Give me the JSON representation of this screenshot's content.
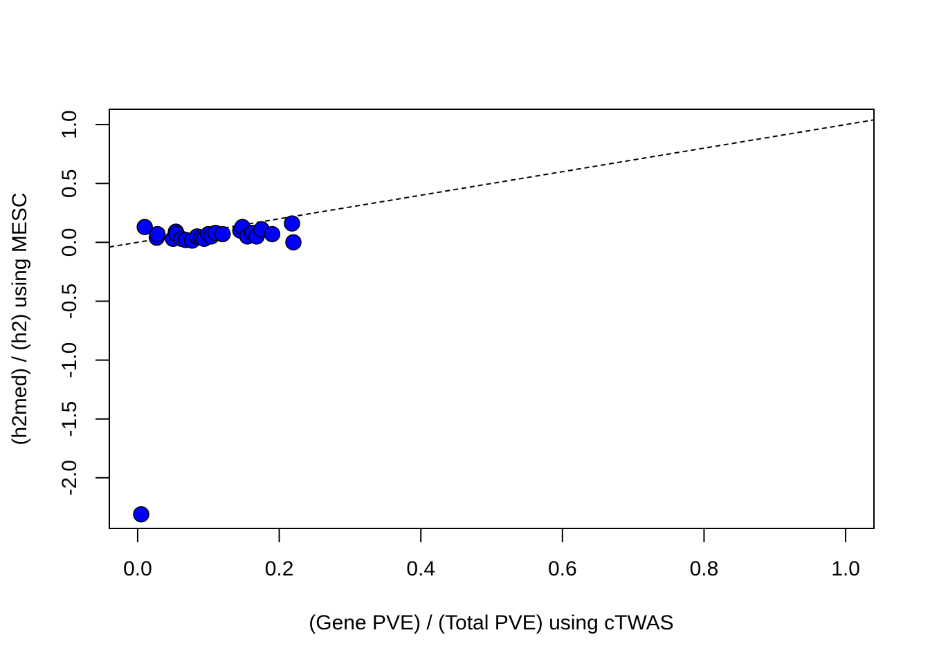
{
  "chart_data": {
    "type": "scatter",
    "title": "",
    "xlabel": "(Gene PVE) / (Total PVE) using cTWAS",
    "ylabel": "(h2med) / (h2) using MESC",
    "xlim": [
      -0.04,
      1.04
    ],
    "ylim": [
      -2.43,
      1.13
    ],
    "x_ticks": [
      {
        "value": 0.0,
        "label": "0.0"
      },
      {
        "value": 0.2,
        "label": "0.2"
      },
      {
        "value": 0.4,
        "label": "0.4"
      },
      {
        "value": 0.6,
        "label": "0.6"
      },
      {
        "value": 0.8,
        "label": "0.8"
      },
      {
        "value": 1.0,
        "label": "1.0"
      }
    ],
    "y_ticks": [
      {
        "value": 1.0,
        "label": "1.0"
      },
      {
        "value": 0.5,
        "label": "0.5"
      },
      {
        "value": 0.0,
        "label": "0.0"
      },
      {
        "value": -0.5,
        "label": "-0.5"
      },
      {
        "value": -1.0,
        "label": "-1.0"
      },
      {
        "value": -1.5,
        "label": "-1.5"
      },
      {
        "value": -2.0,
        "label": "-2.0"
      }
    ],
    "grid": false,
    "legend": "none",
    "point_color": "#0000ff",
    "point_stroke": "#000000",
    "reference_line": {
      "style": "dashed",
      "intercept": 0,
      "slope": 1
    },
    "series": [
      {
        "x": [
          0.005,
          0.01,
          0.027,
          0.028,
          0.05,
          0.054,
          0.055,
          0.062,
          0.068,
          0.077,
          0.084,
          0.09,
          0.094,
          0.1,
          0.104,
          0.11,
          0.12,
          0.145,
          0.148,
          0.155,
          0.162,
          0.168,
          0.175,
          0.19,
          0.218,
          0.22
        ],
        "y": [
          -2.31,
          0.13,
          0.04,
          0.07,
          0.03,
          0.09,
          0.07,
          0.03,
          0.02,
          0.015,
          0.05,
          0.04,
          0.03,
          0.07,
          0.05,
          0.08,
          0.07,
          0.1,
          0.13,
          0.05,
          0.08,
          0.05,
          0.11,
          0.07,
          0.16,
          0.0
        ]
      }
    ]
  }
}
